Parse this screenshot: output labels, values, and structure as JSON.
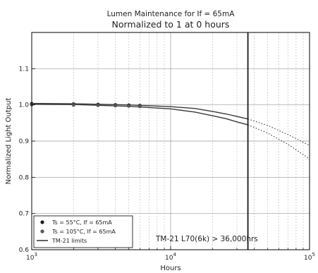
{
  "chart_data": {
    "type": "line",
    "title": "Lumen Maintenance for If = 65mA",
    "subtitle": "Normalized to 1 at 0 hours",
    "xlabel": "Hours",
    "ylabel": "Normalized Light Output",
    "xscale": "log",
    "xlim": [
      1000,
      100000
    ],
    "ylim": [
      0.6,
      1.2
    ],
    "x_ticks": [
      {
        "value": 1000,
        "base": "10",
        "exp": "3"
      },
      {
        "value": 10000,
        "base": "10",
        "exp": "4"
      },
      {
        "value": 100000,
        "base": "10",
        "exp": "5"
      }
    ],
    "y_ticks": [
      {
        "value": 0.6,
        "label": "0.6"
      },
      {
        "value": 0.7,
        "label": "0.7"
      },
      {
        "value": 0.8,
        "label": "0.8"
      },
      {
        "value": 0.9,
        "label": "0.9"
      },
      {
        "value": 1.0,
        "label": "1.0"
      },
      {
        "value": 1.1,
        "label": "1.1"
      }
    ],
    "grid": true,
    "legend_placement": "lower-left",
    "l70_line_hours": 36000,
    "series": [
      {
        "name": "Ts = 55°C, If = 65mA",
        "kind": "markers",
        "color": "#1c1c1c",
        "points": [
          [
            1000,
            1.003
          ],
          [
            2000,
            1.002
          ],
          [
            3000,
            1.001
          ],
          [
            4000,
            1.0
          ],
          [
            5000,
            0.999
          ],
          [
            6000,
            0.998
          ]
        ]
      },
      {
        "name": "Ts = 105°C, If = 65mA",
        "kind": "markers",
        "color": "#555555",
        "points": [
          [
            1000,
            1.001
          ],
          [
            2000,
            1.0
          ],
          [
            3000,
            0.999
          ],
          [
            4000,
            0.998
          ],
          [
            5000,
            0.997
          ],
          [
            6000,
            0.996
          ]
        ]
      },
      {
        "name": "TM-21 limits",
        "kind": "line",
        "color": "#3a3a3a",
        "solid_until": 36000,
        "curves": [
          {
            "points": [
              [
                1000,
                1.004
              ],
              [
                2000,
                1.003
              ],
              [
                5000,
                1.0
              ],
              [
                10000,
                0.995
              ],
              [
                15000,
                0.99
              ],
              [
                20000,
                0.982
              ],
              [
                25000,
                0.975
              ],
              [
                30000,
                0.968
              ],
              [
                36000,
                0.961
              ],
              [
                50000,
                0.943
              ],
              [
                70000,
                0.918
              ],
              [
                100000,
                0.888
              ]
            ]
          },
          {
            "points": [
              [
                1000,
                1.002
              ],
              [
                2000,
                1.001
              ],
              [
                5000,
                0.996
              ],
              [
                10000,
                0.989
              ],
              [
                15000,
                0.98
              ],
              [
                20000,
                0.97
              ],
              [
                25000,
                0.962
              ],
              [
                30000,
                0.953
              ],
              [
                36000,
                0.945
              ],
              [
                50000,
                0.922
              ],
              [
                70000,
                0.891
              ],
              [
                100000,
                0.851
              ]
            ]
          }
        ]
      }
    ],
    "annotation": "TM-21 L70(6k) > 36,000hrs"
  }
}
